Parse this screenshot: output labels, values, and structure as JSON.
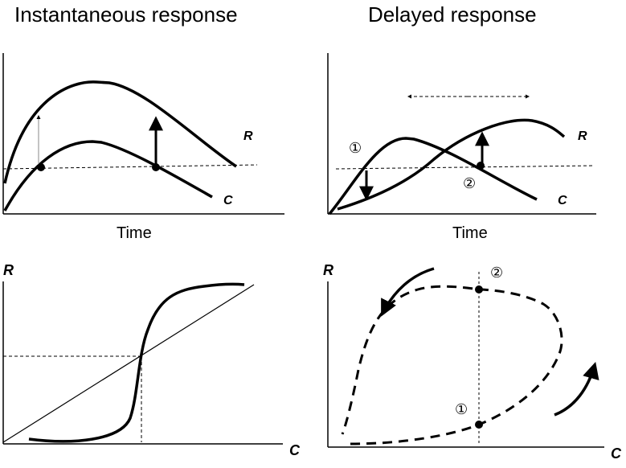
{
  "titles": {
    "instantaneous": "Instantaneous response",
    "delayed": "Delayed response"
  },
  "panel_top_left": {
    "xlabel": "Time",
    "curve_R": "R",
    "curve_C": "C"
  },
  "panel_top_right": {
    "xlabel": "Time",
    "curve_R": "R",
    "curve_C": "C",
    "marker_1": "①",
    "marker_2": "②"
  },
  "panel_bottom_left": {
    "ylabel": "R",
    "xlabel": "C"
  },
  "panel_bottom_right": {
    "ylabel": "R",
    "xlabel": "C",
    "marker_1": "①",
    "marker_2": "②"
  }
}
